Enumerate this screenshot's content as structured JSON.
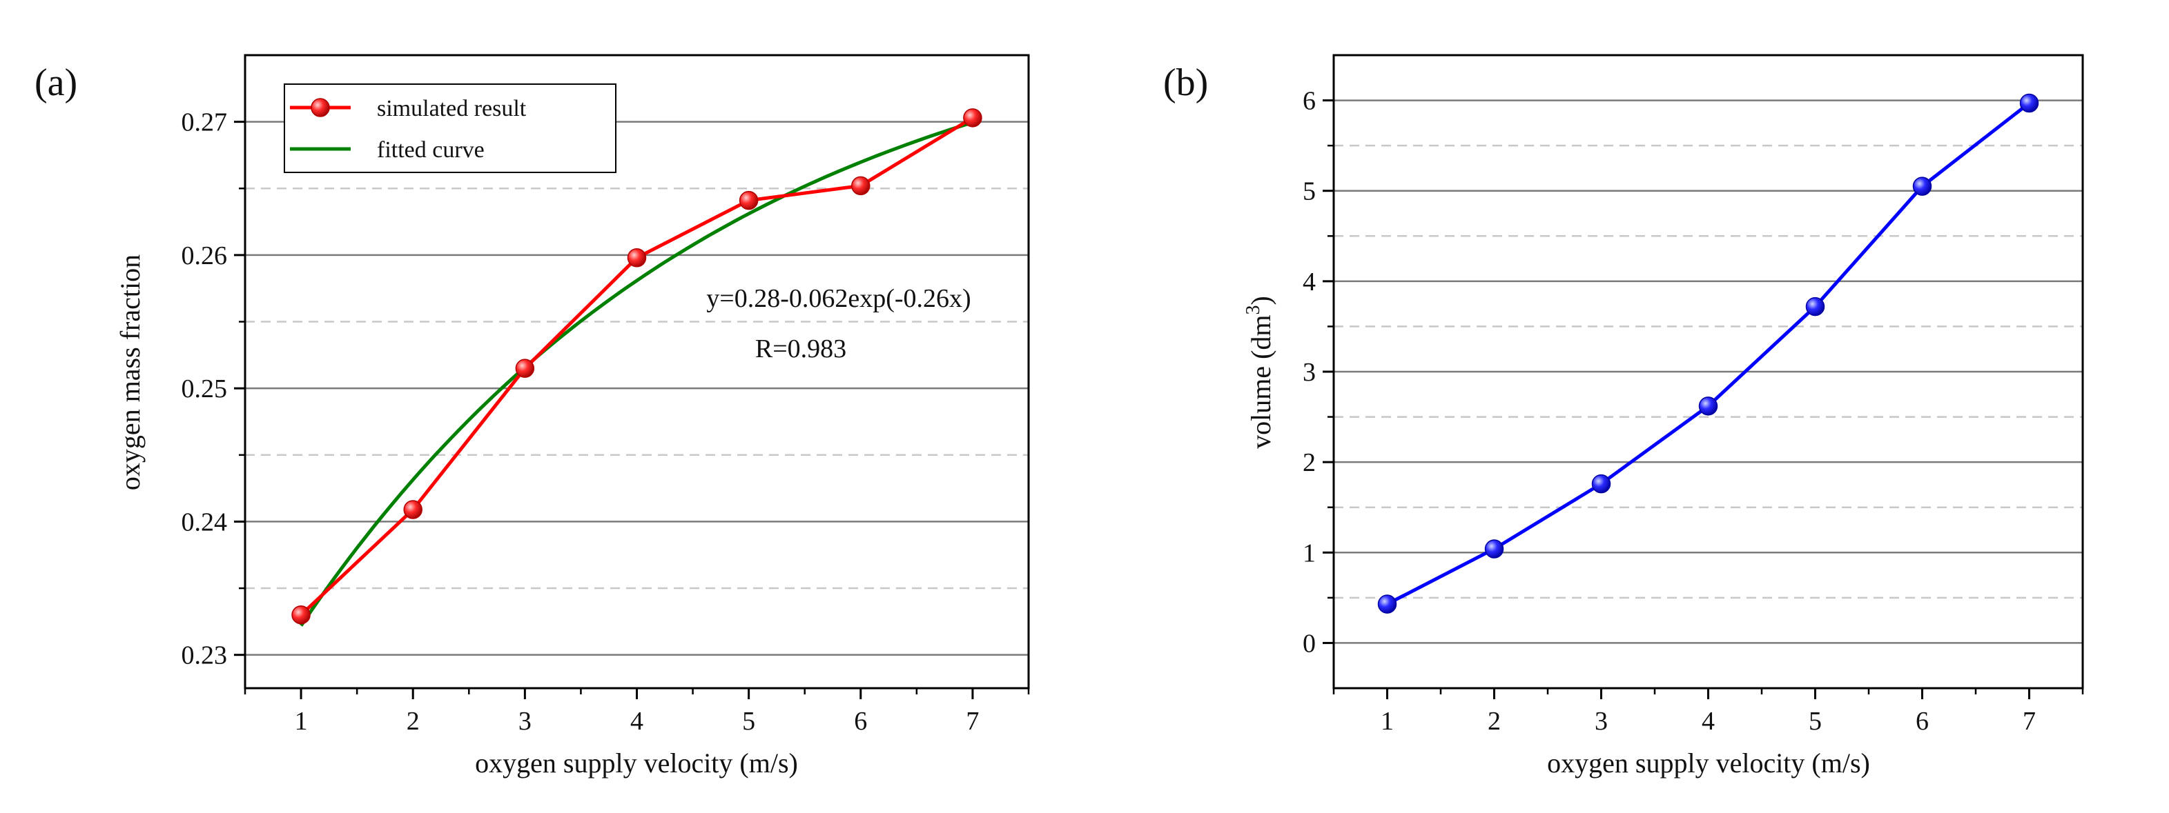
{
  "figure": {
    "background": "#ffffff"
  },
  "chart_data": [
    {
      "type": "line",
      "panel_label": "(a)",
      "title": "",
      "xlabel": "oxygen supply velocity (m/s)",
      "ylabel": "oxygen mass fraction",
      "xlim": [
        0.5,
        7.5
      ],
      "ylim": [
        0.2275,
        0.275
      ],
      "xticks": [
        1,
        2,
        3,
        4,
        5,
        6,
        7
      ],
      "xtick_labels": [
        "1",
        "2",
        "3",
        "4",
        "5",
        "6",
        "7"
      ],
      "yticks": [
        0.23,
        0.24,
        0.25,
        0.26,
        0.27
      ],
      "ytick_labels": [
        "0.23",
        "0.24",
        "0.25",
        "0.26",
        "0.27"
      ],
      "grid_major_y": [
        0.23,
        0.24,
        0.25,
        0.26,
        0.27
      ],
      "grid_minor_y": [
        0.235,
        0.245,
        0.255,
        0.265
      ],
      "legend_position": "top-left",
      "series": [
        {
          "name": "simulated result",
          "kind": "line+markers",
          "color": "#ff0000",
          "x": [
            1,
            2,
            3,
            4,
            5,
            6,
            7
          ],
          "y": [
            0.233,
            0.2409,
            0.2515,
            0.2598,
            0.2641,
            0.2652,
            0.2703
          ]
        },
        {
          "name": "fitted curve",
          "kind": "fit",
          "color": "#008000",
          "model": {
            "a": 0.28,
            "b": 0.062,
            "c": 0.26
          },
          "x_range": [
            1,
            7
          ]
        }
      ],
      "annotations": [
        "y=0.28-0.062exp(-0.26x)",
        "R=0.983"
      ]
    },
    {
      "type": "line",
      "panel_label": "(b)",
      "title": "",
      "xlabel": "oxygen supply velocity (m/s)",
      "ylabel": "volume (dm",
      "ylabel_superscript": "3",
      "ylabel_suffix": ")",
      "xlim": [
        0.5,
        7.5
      ],
      "ylim": [
        -0.5,
        6.5
      ],
      "xticks": [
        1,
        2,
        3,
        4,
        5,
        6,
        7
      ],
      "xtick_labels": [
        "1",
        "2",
        "3",
        "4",
        "5",
        "6",
        "7"
      ],
      "yticks": [
        0,
        1,
        2,
        3,
        4,
        5,
        6
      ],
      "ytick_labels": [
        "0",
        "1",
        "2",
        "3",
        "4",
        "5",
        "6"
      ],
      "grid_major_y": [
        0,
        1,
        2,
        3,
        4,
        5,
        6
      ],
      "grid_minor_y": [
        0.5,
        1.5,
        2.5,
        3.5,
        4.5,
        5.5
      ],
      "series": [
        {
          "name": "volume",
          "kind": "line+markers",
          "color": "#0000ff",
          "x": [
            1,
            2,
            3,
            4,
            5,
            6,
            7
          ],
          "y": [
            0.43,
            1.04,
            1.76,
            2.62,
            3.72,
            5.05,
            5.97
          ]
        }
      ]
    }
  ]
}
